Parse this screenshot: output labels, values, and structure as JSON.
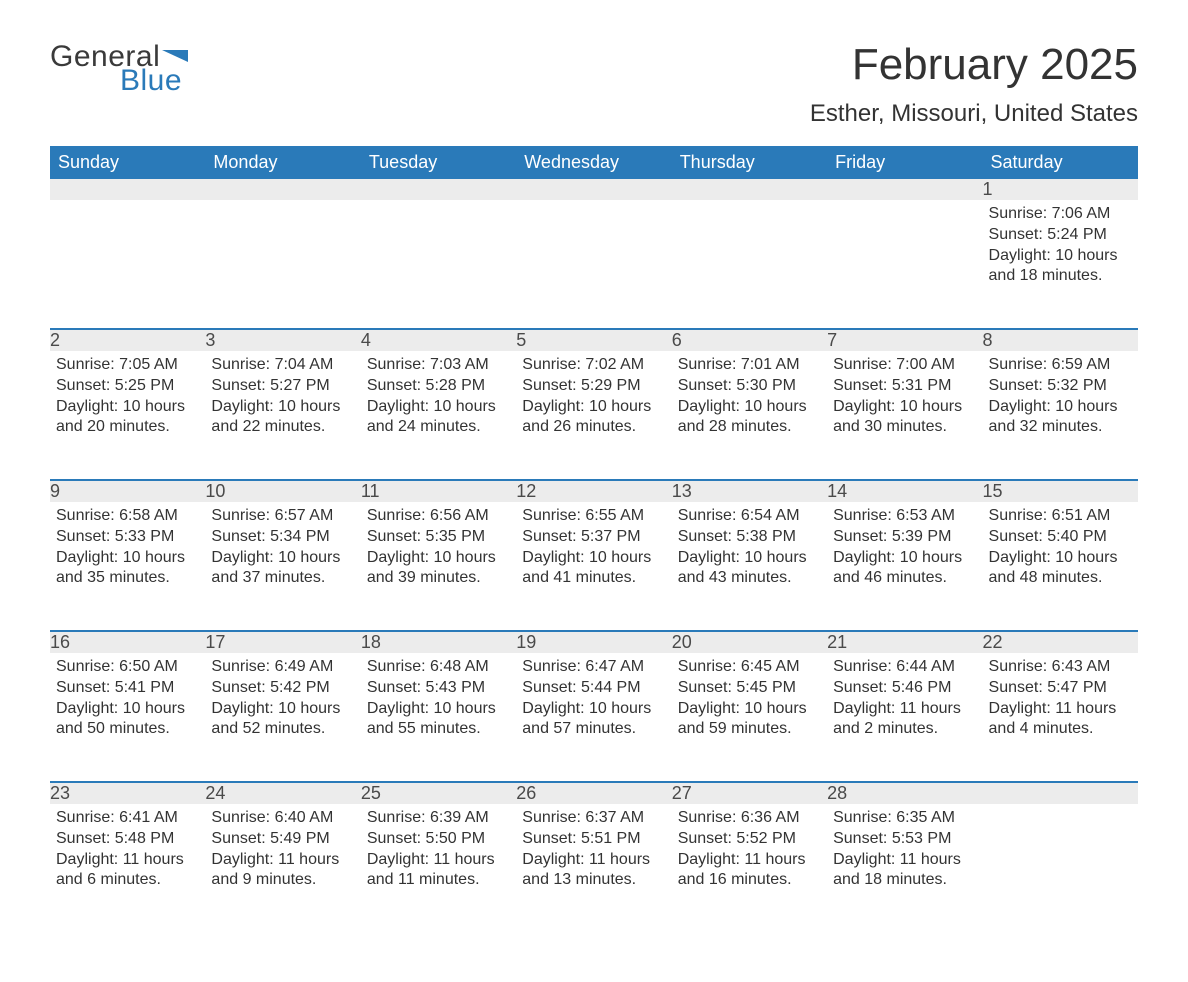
{
  "logo": {
    "word1": "General",
    "word2": "Blue",
    "flag_color": "#2a7ab9"
  },
  "title": "February 2025",
  "location": "Esther, Missouri, United States",
  "colors": {
    "header_bg": "#2a7ab9",
    "header_text": "#ffffff",
    "daynum_bg": "#ececec",
    "daynum_border": "#2a7ab9",
    "body_text": "#333333",
    "page_bg": "#ffffff"
  },
  "weekdays": [
    "Sunday",
    "Monday",
    "Tuesday",
    "Wednesday",
    "Thursday",
    "Friday",
    "Saturday"
  ],
  "weeks": [
    [
      null,
      null,
      null,
      null,
      null,
      null,
      {
        "n": "1",
        "sunrise": "7:06 AM",
        "sunset": "5:24 PM",
        "daylight": "10 hours and 18 minutes."
      }
    ],
    [
      {
        "n": "2",
        "sunrise": "7:05 AM",
        "sunset": "5:25 PM",
        "daylight": "10 hours and 20 minutes."
      },
      {
        "n": "3",
        "sunrise": "7:04 AM",
        "sunset": "5:27 PM",
        "daylight": "10 hours and 22 minutes."
      },
      {
        "n": "4",
        "sunrise": "7:03 AM",
        "sunset": "5:28 PM",
        "daylight": "10 hours and 24 minutes."
      },
      {
        "n": "5",
        "sunrise": "7:02 AM",
        "sunset": "5:29 PM",
        "daylight": "10 hours and 26 minutes."
      },
      {
        "n": "6",
        "sunrise": "7:01 AM",
        "sunset": "5:30 PM",
        "daylight": "10 hours and 28 minutes."
      },
      {
        "n": "7",
        "sunrise": "7:00 AM",
        "sunset": "5:31 PM",
        "daylight": "10 hours and 30 minutes."
      },
      {
        "n": "8",
        "sunrise": "6:59 AM",
        "sunset": "5:32 PM",
        "daylight": "10 hours and 32 minutes."
      }
    ],
    [
      {
        "n": "9",
        "sunrise": "6:58 AM",
        "sunset": "5:33 PM",
        "daylight": "10 hours and 35 minutes."
      },
      {
        "n": "10",
        "sunrise": "6:57 AM",
        "sunset": "5:34 PM",
        "daylight": "10 hours and 37 minutes."
      },
      {
        "n": "11",
        "sunrise": "6:56 AM",
        "sunset": "5:35 PM",
        "daylight": "10 hours and 39 minutes."
      },
      {
        "n": "12",
        "sunrise": "6:55 AM",
        "sunset": "5:37 PM",
        "daylight": "10 hours and 41 minutes."
      },
      {
        "n": "13",
        "sunrise": "6:54 AM",
        "sunset": "5:38 PM",
        "daylight": "10 hours and 43 minutes."
      },
      {
        "n": "14",
        "sunrise": "6:53 AM",
        "sunset": "5:39 PM",
        "daylight": "10 hours and 46 minutes."
      },
      {
        "n": "15",
        "sunrise": "6:51 AM",
        "sunset": "5:40 PM",
        "daylight": "10 hours and 48 minutes."
      }
    ],
    [
      {
        "n": "16",
        "sunrise": "6:50 AM",
        "sunset": "5:41 PM",
        "daylight": "10 hours and 50 minutes."
      },
      {
        "n": "17",
        "sunrise": "6:49 AM",
        "sunset": "5:42 PM",
        "daylight": "10 hours and 52 minutes."
      },
      {
        "n": "18",
        "sunrise": "6:48 AM",
        "sunset": "5:43 PM",
        "daylight": "10 hours and 55 minutes."
      },
      {
        "n": "19",
        "sunrise": "6:47 AM",
        "sunset": "5:44 PM",
        "daylight": "10 hours and 57 minutes."
      },
      {
        "n": "20",
        "sunrise": "6:45 AM",
        "sunset": "5:45 PM",
        "daylight": "10 hours and 59 minutes."
      },
      {
        "n": "21",
        "sunrise": "6:44 AM",
        "sunset": "5:46 PM",
        "daylight": "11 hours and 2 minutes."
      },
      {
        "n": "22",
        "sunrise": "6:43 AM",
        "sunset": "5:47 PM",
        "daylight": "11 hours and 4 minutes."
      }
    ],
    [
      {
        "n": "23",
        "sunrise": "6:41 AM",
        "sunset": "5:48 PM",
        "daylight": "11 hours and 6 minutes."
      },
      {
        "n": "24",
        "sunrise": "6:40 AM",
        "sunset": "5:49 PM",
        "daylight": "11 hours and 9 minutes."
      },
      {
        "n": "25",
        "sunrise": "6:39 AM",
        "sunset": "5:50 PM",
        "daylight": "11 hours and 11 minutes."
      },
      {
        "n": "26",
        "sunrise": "6:37 AM",
        "sunset": "5:51 PM",
        "daylight": "11 hours and 13 minutes."
      },
      {
        "n": "27",
        "sunrise": "6:36 AM",
        "sunset": "5:52 PM",
        "daylight": "11 hours and 16 minutes."
      },
      {
        "n": "28",
        "sunrise": "6:35 AM",
        "sunset": "5:53 PM",
        "daylight": "11 hours and 18 minutes."
      },
      null
    ]
  ],
  "labels": {
    "sunrise": "Sunrise: ",
    "sunset": "Sunset: ",
    "daylight": "Daylight: "
  }
}
